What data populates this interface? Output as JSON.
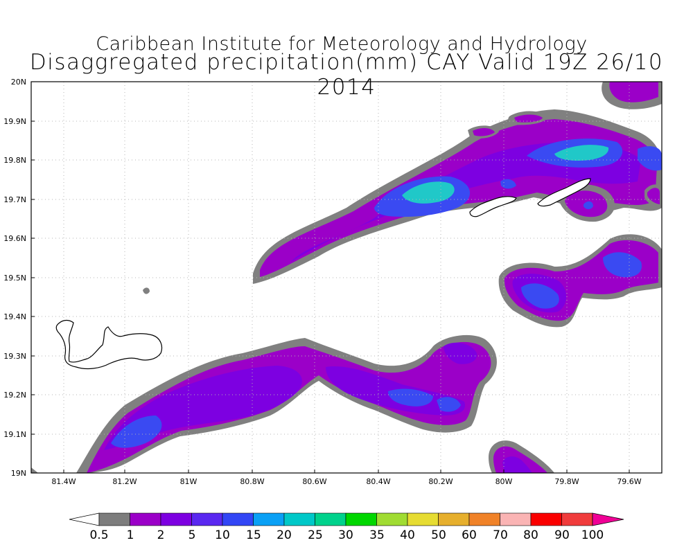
{
  "title": {
    "line1": "Caribbean Institute for Meteorology and Hydrology",
    "line2": "Disaggregated precipitation(mm) CAY Valid 19Z 26/10 2014"
  },
  "axes": {
    "lat_labels": [
      "20N",
      "19.9N",
      "19.8N",
      "19.7N",
      "19.6N",
      "19.5N",
      "19.4N",
      "19.3N",
      "19.2N",
      "19.1N",
      "19N"
    ],
    "lon_labels": [
      "81.4W",
      "81.2W",
      "81W",
      "80.8W",
      "80.6W",
      "80.4W",
      "80.2W",
      "80W",
      "79.8W",
      "79.6W"
    ]
  },
  "colorbar": {
    "labels": [
      "0.5",
      "1",
      "2",
      "5",
      "10",
      "15",
      "20",
      "25",
      "30",
      "35",
      "40",
      "50",
      "60",
      "70",
      "80",
      "90",
      "100"
    ],
    "colors": [
      "#7d7d7d",
      "#9b00c8",
      "#7d00e1",
      "#5a28f0",
      "#3246f5",
      "#0aa0f5",
      "#00c8c8",
      "#00d28c",
      "#00d700",
      "#a0dc32",
      "#e6dc32",
      "#e6af2d",
      "#f08228",
      "#fab4b4",
      "#fa0000",
      "#f03c3c",
      "#f00096"
    ]
  },
  "map_layers": {
    "grey": "#808080",
    "purple": "#9b00c8",
    "violet": "#7d00e1",
    "blue": "#4a3cf2",
    "cyan": "#1ec8c8"
  }
}
